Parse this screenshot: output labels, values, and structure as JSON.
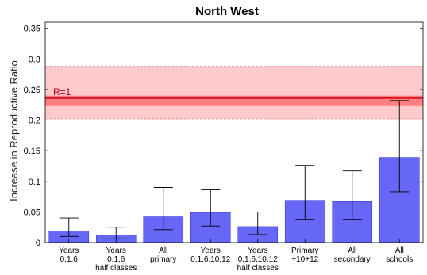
{
  "chart_data": {
    "type": "bar",
    "title": "North West",
    "ylabel": "Increase in Reproductive Ratio",
    "xlabel": "",
    "ylim": [
      0,
      0.36
    ],
    "yticks": [
      0,
      0.05,
      0.1,
      0.15,
      0.2,
      0.25,
      0.3,
      0.35
    ],
    "ytick_labels": [
      "0",
      "0.05",
      "0.1",
      "0.15",
      "0.2",
      "0.25",
      "0.3",
      "0.35"
    ],
    "categories": [
      [
        "Years",
        "0,1,6"
      ],
      [
        "Years",
        "0,1,6",
        "half classes"
      ],
      [
        "All",
        "primary"
      ],
      [
        "Years",
        "0,1,6,10,12"
      ],
      [
        "Years",
        "0,1,6,10,12",
        "half classes"
      ],
      [
        "Primary",
        "+10+12"
      ],
      [
        "All",
        "secondary"
      ],
      [
        "All",
        "schools"
      ]
    ],
    "values": [
      0.019,
      0.012,
      0.042,
      0.049,
      0.026,
      0.069,
      0.067,
      0.139
    ],
    "error_low": [
      0.01,
      0.006,
      0.021,
      0.027,
      0.013,
      0.038,
      0.038,
      0.083
    ],
    "error_high": [
      0.04,
      0.025,
      0.09,
      0.086,
      0.05,
      0.126,
      0.117,
      0.232
    ],
    "reference": {
      "label": "R=1",
      "value": 0.236,
      "inner_band": [
        0.223,
        0.24
      ],
      "outer_band": [
        0.202,
        0.288
      ]
    },
    "grid": false,
    "colors": {
      "bar": "#6767f7",
      "bar_edge": "#3b3bd6",
      "error": "#000000",
      "ref_line": "#d9141e",
      "inner_band": "#ff7f80",
      "outer_band": "#ffcacb",
      "band_edge": "#f08080",
      "ref_label": "#b0001c"
    }
  }
}
